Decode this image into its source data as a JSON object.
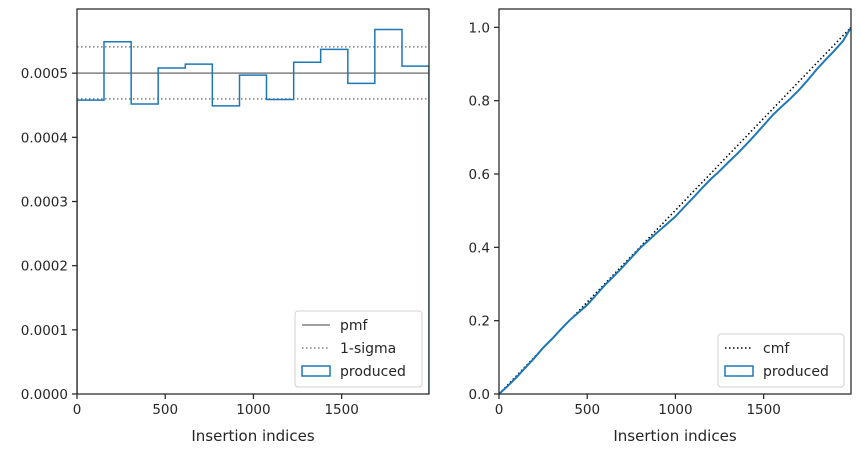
{
  "chart_data": [
    {
      "type": "line",
      "title": "",
      "xlabel": "Insertion indices",
      "ylabel": "",
      "xlim": [
        0,
        1995
      ],
      "ylim": [
        0,
        0.0006
      ],
      "x_ticks": [
        0,
        500,
        1000,
        1500
      ],
      "x_tick_labels": [
        "0",
        "500",
        "1000",
        "1500"
      ],
      "y_ticks": [
        0,
        0.0001,
        0.0002,
        0.0003,
        0.0004,
        0.0005
      ],
      "y_tick_labels": [
        "0.0000",
        "0.0001",
        "0.0002",
        "0.0003",
        "0.0004",
        "0.0005"
      ],
      "grid": false,
      "legend_position": "lower-right",
      "legend": [
        "pmf",
        "1-sigma",
        "produced"
      ],
      "pmf": {
        "name": "pmf",
        "value": 0.0005,
        "color": "#808080",
        "style": "solid"
      },
      "sigma_band": {
        "name": "1-sigma",
        "lower": 0.00046,
        "upper": 0.000541,
        "color": "#808080",
        "style": "dotted"
      },
      "produced": {
        "name": "produced",
        "type": "step-histogram",
        "color": "#1f77b4",
        "bin_edges": [
          0,
          153,
          307,
          460,
          614,
          767,
          921,
          1074,
          1228,
          1381,
          1535,
          1688,
          1842,
          1995
        ],
        "values": [
          0.000458,
          0.000549,
          0.000452,
          0.000508,
          0.000514,
          0.000449,
          0.000497,
          0.000459,
          0.000517,
          0.000537,
          0.000484,
          0.000568,
          0.000511
        ]
      }
    },
    {
      "type": "line",
      "title": "",
      "xlabel": "Insertion indices",
      "ylabel": "",
      "xlim": [
        0,
        1995
      ],
      "ylim": [
        0,
        1.05
      ],
      "x_ticks": [
        0,
        500,
        1000,
        1500
      ],
      "x_tick_labels": [
        "0",
        "500",
        "1000",
        "1500"
      ],
      "y_ticks": [
        0,
        0.2,
        0.4,
        0.6,
        0.8,
        1.0
      ],
      "y_tick_labels": [
        "0.0",
        "0.2",
        "0.4",
        "0.6",
        "0.8",
        "1.0"
      ],
      "grid": false,
      "legend_position": "lower-right",
      "legend": [
        "cmf",
        "produced"
      ],
      "cmf": {
        "name": "cmf",
        "x": [
          0,
          1995
        ],
        "y": [
          0,
          1.0
        ],
        "color": "#000000",
        "style": "dotted"
      },
      "produced": {
        "name": "produced",
        "color": "#1f77b4",
        "x": [
          0,
          50,
          100,
          150,
          200,
          250,
          300,
          350,
          400,
          450,
          500,
          550,
          600,
          650,
          700,
          750,
          800,
          850,
          900,
          950,
          1000,
          1050,
          1100,
          1150,
          1200,
          1250,
          1300,
          1350,
          1400,
          1450,
          1500,
          1550,
          1600,
          1650,
          1700,
          1750,
          1800,
          1850,
          1900,
          1950,
          1995
        ],
        "y": [
          0,
          0.022,
          0.046,
          0.072,
          0.098,
          0.126,
          0.15,
          0.176,
          0.201,
          0.222,
          0.243,
          0.27,
          0.297,
          0.321,
          0.346,
          0.372,
          0.398,
          0.42,
          0.442,
          0.463,
          0.484,
          0.51,
          0.535,
          0.561,
          0.586,
          0.608,
          0.632,
          0.655,
          0.68,
          0.706,
          0.733,
          0.76,
          0.783,
          0.805,
          0.829,
          0.856,
          0.885,
          0.911,
          0.936,
          0.963,
          1.0
        ]
      }
    }
  ]
}
